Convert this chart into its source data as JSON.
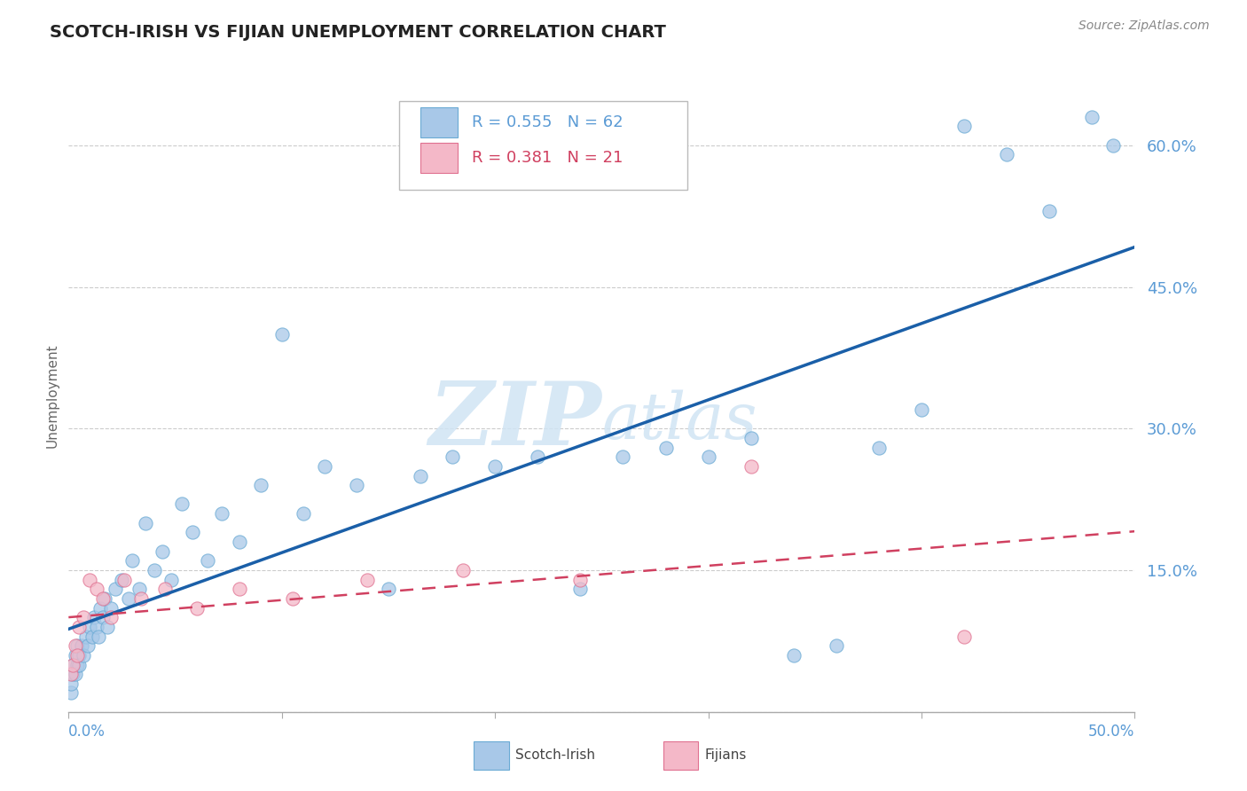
{
  "title": "SCOTCH-IRISH VS FIJIAN UNEMPLOYMENT CORRELATION CHART",
  "source": "Source: ZipAtlas.com",
  "xmin": 0.0,
  "xmax": 0.5,
  "ymin": 0.0,
  "ymax": 0.67,
  "yticks": [
    0.0,
    0.15,
    0.3,
    0.45,
    0.6
  ],
  "ytick_labels": [
    "",
    "15.0%",
    "30.0%",
    "45.0%",
    "60.0%"
  ],
  "r_scotch": "0.555",
  "n_scotch": "62",
  "r_fijian": "0.381",
  "n_fijian": "21",
  "scotch_color": "#a8c8e8",
  "scotch_edge": "#6aaad4",
  "fijian_color": "#f4b8c8",
  "fijian_edge": "#e07090",
  "trend_scotch_color": "#1a5fa8",
  "trend_fijian_color": "#d04060",
  "watermark_color": "#d0e4f4",
  "scotch_x": [
    0.001,
    0.001,
    0.002,
    0.002,
    0.003,
    0.003,
    0.004,
    0.004,
    0.005,
    0.005,
    0.006,
    0.007,
    0.008,
    0.009,
    0.01,
    0.011,
    0.012,
    0.013,
    0.014,
    0.015,
    0.016,
    0.017,
    0.018,
    0.02,
    0.022,
    0.025,
    0.028,
    0.03,
    0.033,
    0.036,
    0.04,
    0.044,
    0.048,
    0.053,
    0.058,
    0.065,
    0.072,
    0.08,
    0.09,
    0.1,
    0.11,
    0.12,
    0.135,
    0.15,
    0.165,
    0.18,
    0.2,
    0.22,
    0.24,
    0.26,
    0.28,
    0.3,
    0.32,
    0.34,
    0.36,
    0.38,
    0.4,
    0.42,
    0.44,
    0.46,
    0.48,
    0.49
  ],
  "scotch_y": [
    0.02,
    0.03,
    0.04,
    0.05,
    0.04,
    0.06,
    0.05,
    0.07,
    0.06,
    0.05,
    0.07,
    0.06,
    0.08,
    0.07,
    0.09,
    0.08,
    0.1,
    0.09,
    0.08,
    0.11,
    0.1,
    0.12,
    0.09,
    0.11,
    0.13,
    0.14,
    0.12,
    0.16,
    0.13,
    0.2,
    0.15,
    0.17,
    0.14,
    0.22,
    0.19,
    0.16,
    0.21,
    0.18,
    0.24,
    0.4,
    0.21,
    0.26,
    0.24,
    0.13,
    0.25,
    0.27,
    0.26,
    0.27,
    0.13,
    0.27,
    0.28,
    0.27,
    0.29,
    0.06,
    0.07,
    0.28,
    0.32,
    0.62,
    0.59,
    0.53,
    0.63,
    0.6
  ],
  "fijian_x": [
    0.001,
    0.002,
    0.003,
    0.004,
    0.005,
    0.007,
    0.01,
    0.013,
    0.016,
    0.02,
    0.026,
    0.034,
    0.045,
    0.06,
    0.08,
    0.105,
    0.14,
    0.185,
    0.24,
    0.32,
    0.42
  ],
  "fijian_y": [
    0.04,
    0.05,
    0.07,
    0.06,
    0.09,
    0.1,
    0.14,
    0.13,
    0.12,
    0.1,
    0.14,
    0.12,
    0.13,
    0.11,
    0.13,
    0.12,
    0.14,
    0.15,
    0.14,
    0.26,
    0.08
  ]
}
